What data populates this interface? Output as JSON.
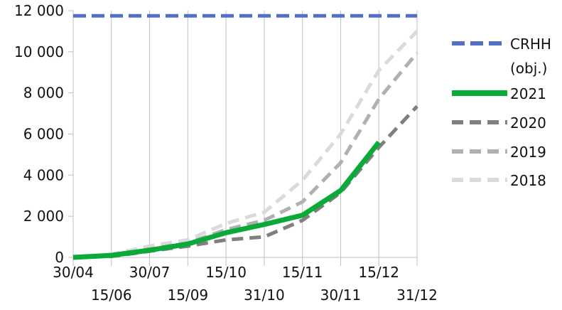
{
  "chart_data": {
    "type": "line",
    "categories": [
      "30/04",
      "15/06",
      "30/07",
      "15/09",
      "15/10",
      "31/10",
      "15/11",
      "30/11",
      "15/12",
      "31/12"
    ],
    "ylim": [
      0,
      12000
    ],
    "yticks": [
      "0",
      "2 000",
      "4 000",
      "6 000",
      "8 000",
      "10 000",
      "12 000"
    ],
    "ytick_values": [
      0,
      2000,
      4000,
      6000,
      8000,
      10000,
      12000
    ],
    "grid": "vertical-only",
    "legend_position": "right",
    "series": [
      {
        "name": "CRHH (obj.)",
        "name_lines": [
          "CRHH",
          "(obj.)"
        ],
        "color": "#5470c6",
        "style": "dashed",
        "values": [
          11750,
          11750,
          11750,
          11750,
          11750,
          11750,
          11750,
          11750,
          11750,
          11750
        ]
      },
      {
        "name": "2021",
        "name_lines": [
          "2021"
        ],
        "color": "#0aaa38",
        "style": "solid",
        "values": [
          0,
          100,
          350,
          650,
          1200,
          1600,
          2050,
          3250,
          5600,
          null
        ]
      },
      {
        "name": "2020",
        "name_lines": [
          "2020"
        ],
        "color": "#7f7f7f",
        "style": "dashed",
        "values": [
          0,
          50,
          300,
          550,
          850,
          1000,
          1800,
          3150,
          5350,
          7350
        ]
      },
      {
        "name": "2019",
        "name_lines": [
          "2019"
        ],
        "color": "#b0b0b0",
        "style": "dashed",
        "values": [
          0,
          100,
          400,
          700,
          1350,
          1800,
          2700,
          4600,
          7700,
          9950
        ]
      },
      {
        "name": "2018",
        "name_lines": [
          "2018"
        ],
        "color": "#dadada",
        "style": "dashed",
        "values": [
          0,
          150,
          550,
          850,
          1650,
          2200,
          3750,
          6000,
          9100,
          11000
        ]
      }
    ]
  }
}
